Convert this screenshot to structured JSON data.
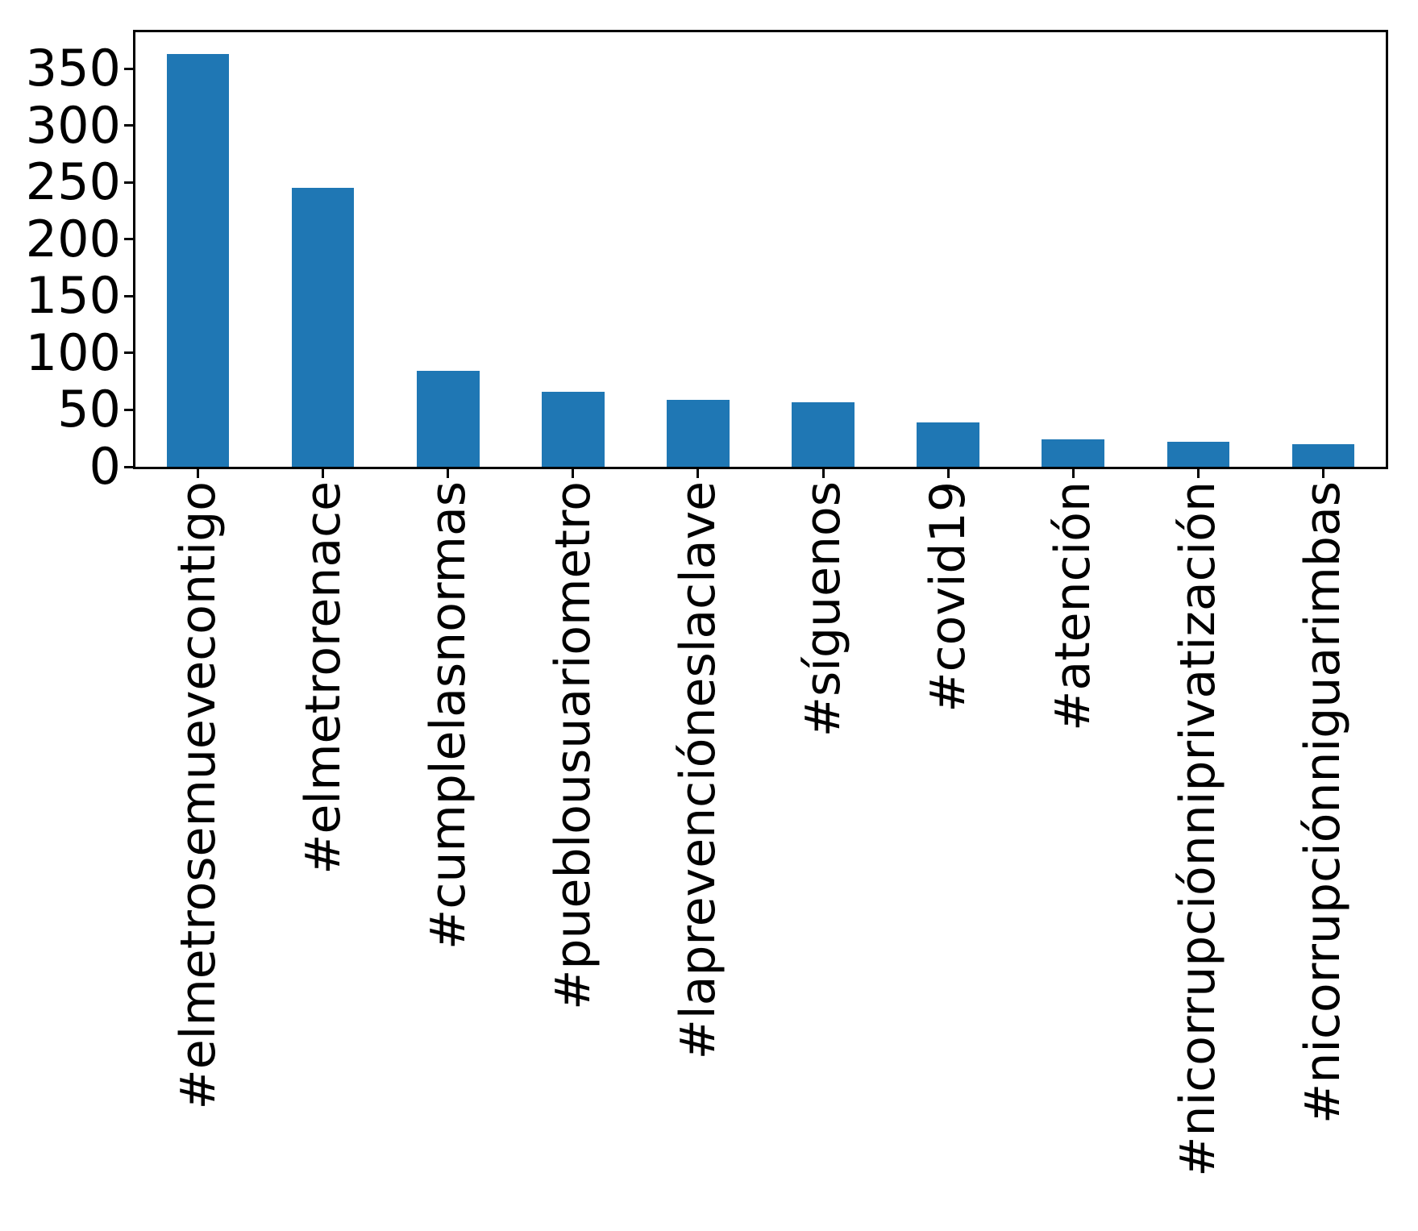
{
  "figure": {
    "background": "#ffffff",
    "text_color": "#000000"
  },
  "chart_data": {
    "type": "bar",
    "title": "",
    "xlabel": "",
    "ylabel": "",
    "categories": [
      "#elmetrosemuevecontigo",
      "#elmetrorenace",
      "#cumplelasnormas",
      "#pueblousuariometro",
      "#laprevencióneslaclave",
      "#síguenos",
      "#covid19",
      "#atención",
      "#nicorrupciónniprivatización",
      "#nicorrupciónniguarimbas"
    ],
    "values": [
      363,
      245,
      84,
      66,
      59,
      57,
      39,
      24,
      22,
      20
    ],
    "yticks": [
      0,
      50,
      100,
      150,
      200,
      250,
      300,
      350
    ],
    "ytick_labels": [
      "0",
      "50",
      "100",
      "150",
      "200",
      "250",
      "300",
      "350"
    ],
    "ylim": [
      0,
      382
    ],
    "bar_color": "#1f77b4",
    "bar_width_fraction": 0.5,
    "grid": false,
    "legend": null,
    "x_label_rotation_deg": 90
  }
}
